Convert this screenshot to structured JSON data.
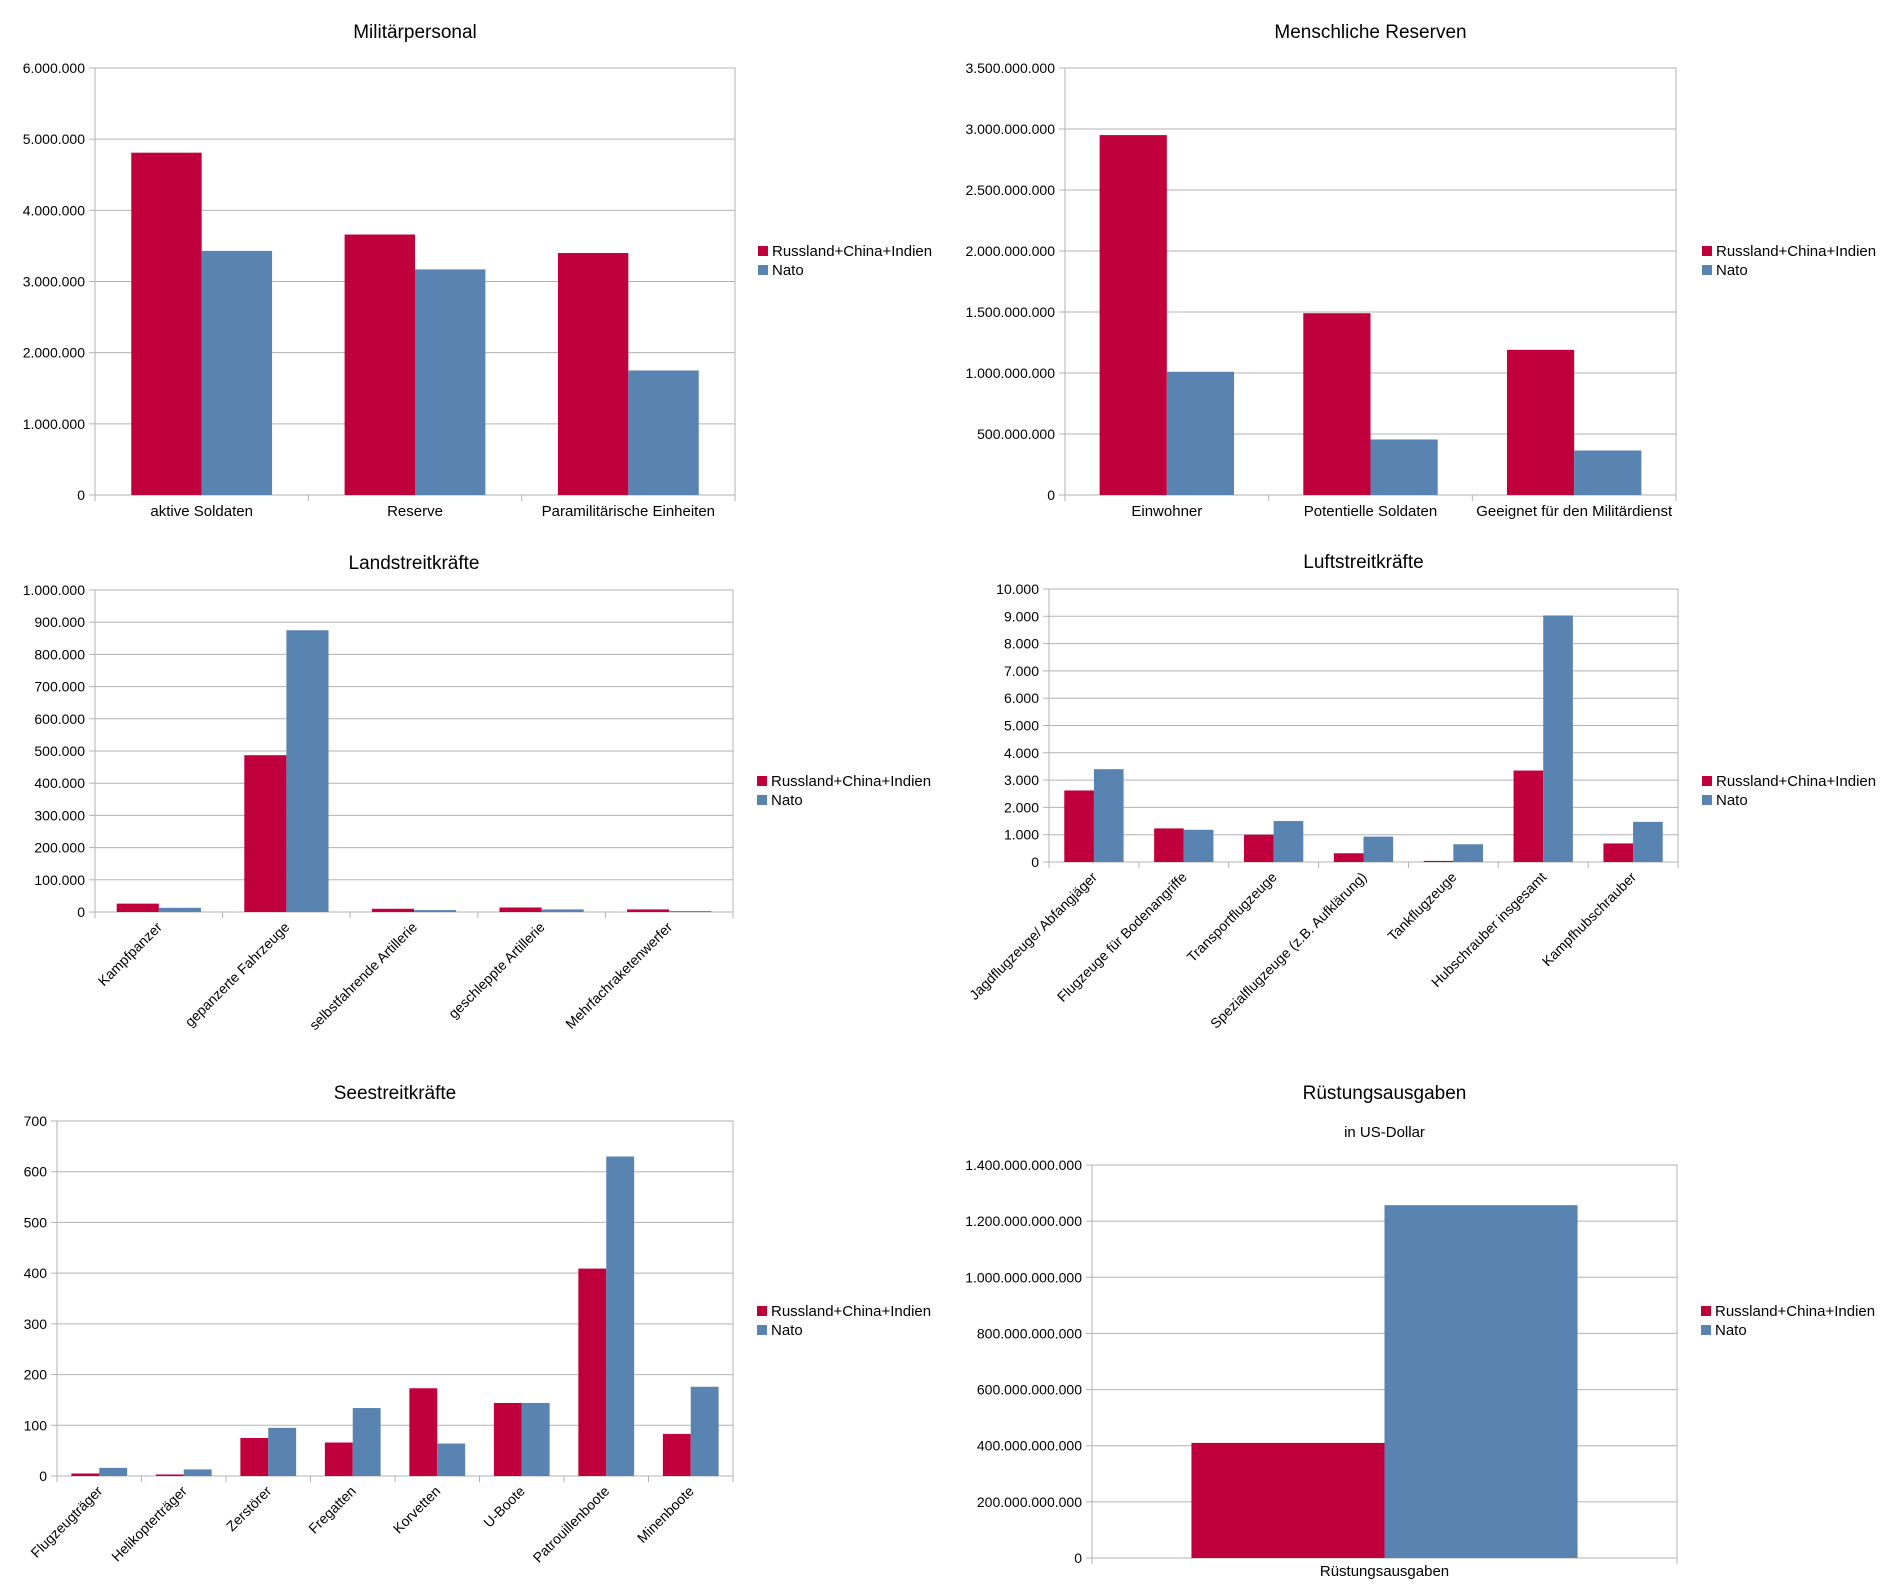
{
  "colors": {
    "series_a": "#c0003c",
    "series_b": "#5983b0",
    "grid": "#b3b3b3",
    "axis": "#b3b3b3"
  },
  "chart_data": [
    {
      "type": "bar",
      "title": "Militärpersonal",
      "subtitle": "",
      "categories": [
        "aktive Soldaten",
        "Reserve",
        "Paramilitärische Einheiten"
      ],
      "series": [
        {
          "name": "Russland+China+Indien",
          "values": [
            4810000,
            3660000,
            3400000
          ]
        },
        {
          "name": "Nato",
          "values": [
            3430000,
            3170000,
            1750000
          ]
        }
      ],
      "ylim": [
        0,
        6000000
      ],
      "yticks": [
        "0",
        "1.000.000",
        "2.000.000",
        "3.000.000",
        "4.000.000",
        "5.000.000",
        "6.000.000"
      ],
      "grid": true,
      "legend": "right",
      "rotate_labels": false
    },
    {
      "type": "bar",
      "title": "Menschliche Reserven",
      "subtitle": "",
      "categories": [
        "Einwohner",
        "Potentielle Soldaten",
        "Geeignet für den Militärdienst"
      ],
      "series": [
        {
          "name": "Russland+China+Indien",
          "values": [
            2950000000,
            1490000000,
            1190000000
          ]
        },
        {
          "name": "Nato",
          "values": [
            1010000000,
            455000000,
            365000000
          ]
        }
      ],
      "ylim": [
        0,
        3500000000
      ],
      "yticks": [
        "0",
        "500.000.000",
        "1.000.000.000",
        "1.500.000.000",
        "2.000.000.000",
        "2.500.000.000",
        "3.000.000.000",
        "3.500.000.000"
      ],
      "grid": true,
      "legend": "right",
      "rotate_labels": false
    },
    {
      "type": "bar",
      "title": "Landstreitkräfte",
      "subtitle": "",
      "categories": [
        "Kampfpanzer",
        "gepanzerte Fahrzeuge",
        "selbstfahrende Artillerie",
        "geschleppte Artillerie",
        "Mehrfachraketenwerfer"
      ],
      "series": [
        {
          "name": "Russland+China+Indien",
          "values": [
            26000,
            487000,
            10000,
            14000,
            8000
          ]
        },
        {
          "name": "Nato",
          "values": [
            13000,
            875000,
            6000,
            8000,
            3000
          ]
        }
      ],
      "ylim": [
        0,
        1000000
      ],
      "yticks": [
        "0",
        "100.000",
        "200.000",
        "300.000",
        "400.000",
        "500.000",
        "600.000",
        "700.000",
        "800.000",
        "900.000",
        "1.000.000"
      ],
      "grid": true,
      "legend": "right",
      "rotate_labels": true
    },
    {
      "type": "bar",
      "title": "Luftstreitkräfte",
      "subtitle": "",
      "categories": [
        "Jagdflugzeuge/ Abfangjäger",
        "Flugzeuge für Bodenangriffe",
        "Transportflugzeuge",
        "Spezialflugzeuge (z.B. Aufklärung)",
        "Tankflugzeuge",
        "Hubschrauber insgesamt",
        "Kampfhubschrauber"
      ],
      "series": [
        {
          "name": "Russland+China+Indien",
          "values": [
            2620,
            1230,
            1000,
            320,
            40,
            3350,
            680
          ]
        },
        {
          "name": "Nato",
          "values": [
            3400,
            1180,
            1500,
            930,
            650,
            9030,
            1470
          ]
        }
      ],
      "ylim": [
        0,
        10000
      ],
      "yticks": [
        "0",
        "1.000",
        "2.000",
        "3.000",
        "4.000",
        "5.000",
        "6.000",
        "7.000",
        "8.000",
        "9.000",
        "10.000"
      ],
      "grid": true,
      "legend": "right",
      "rotate_labels": true
    },
    {
      "type": "bar",
      "title": "Seestreitkräfte",
      "subtitle": "",
      "categories": [
        "Flugzeugträger",
        "Helikopterträger",
        "Zerstörer",
        "Fregatten",
        "Korvetten",
        "U-Boote",
        "Patrouillenboote",
        "Minenboote"
      ],
      "series": [
        {
          "name": "Russland+China+Indien",
          "values": [
            5,
            3,
            75,
            66,
            173,
            144,
            409,
            83
          ]
        },
        {
          "name": "Nato",
          "values": [
            16,
            13,
            95,
            134,
            64,
            144,
            630,
            176
          ]
        }
      ],
      "ylim": [
        0,
        700
      ],
      "yticks": [
        "0",
        "100",
        "200",
        "300",
        "400",
        "500",
        "600",
        "700"
      ],
      "grid": true,
      "legend": "right",
      "rotate_labels": true
    },
    {
      "type": "bar",
      "title": "Rüstungsausgaben",
      "subtitle": "in US-Dollar",
      "categories": [
        "Rüstungsausgaben"
      ],
      "series": [
        {
          "name": "Russland+China+Indien",
          "values": [
            410000000000
          ]
        },
        {
          "name": "Nato",
          "values": [
            1257000000000
          ]
        }
      ],
      "ylim": [
        0,
        1400000000000
      ],
      "yticks": [
        "0",
        "200.000.000.000",
        "400.000.000.000",
        "600.000.000.000",
        "800.000.000.000",
        "1.000.000.000.000",
        "1.200.000.000.000",
        "1.400.000.000.000"
      ],
      "grid": true,
      "legend": "right",
      "rotate_labels": false
    }
  ]
}
